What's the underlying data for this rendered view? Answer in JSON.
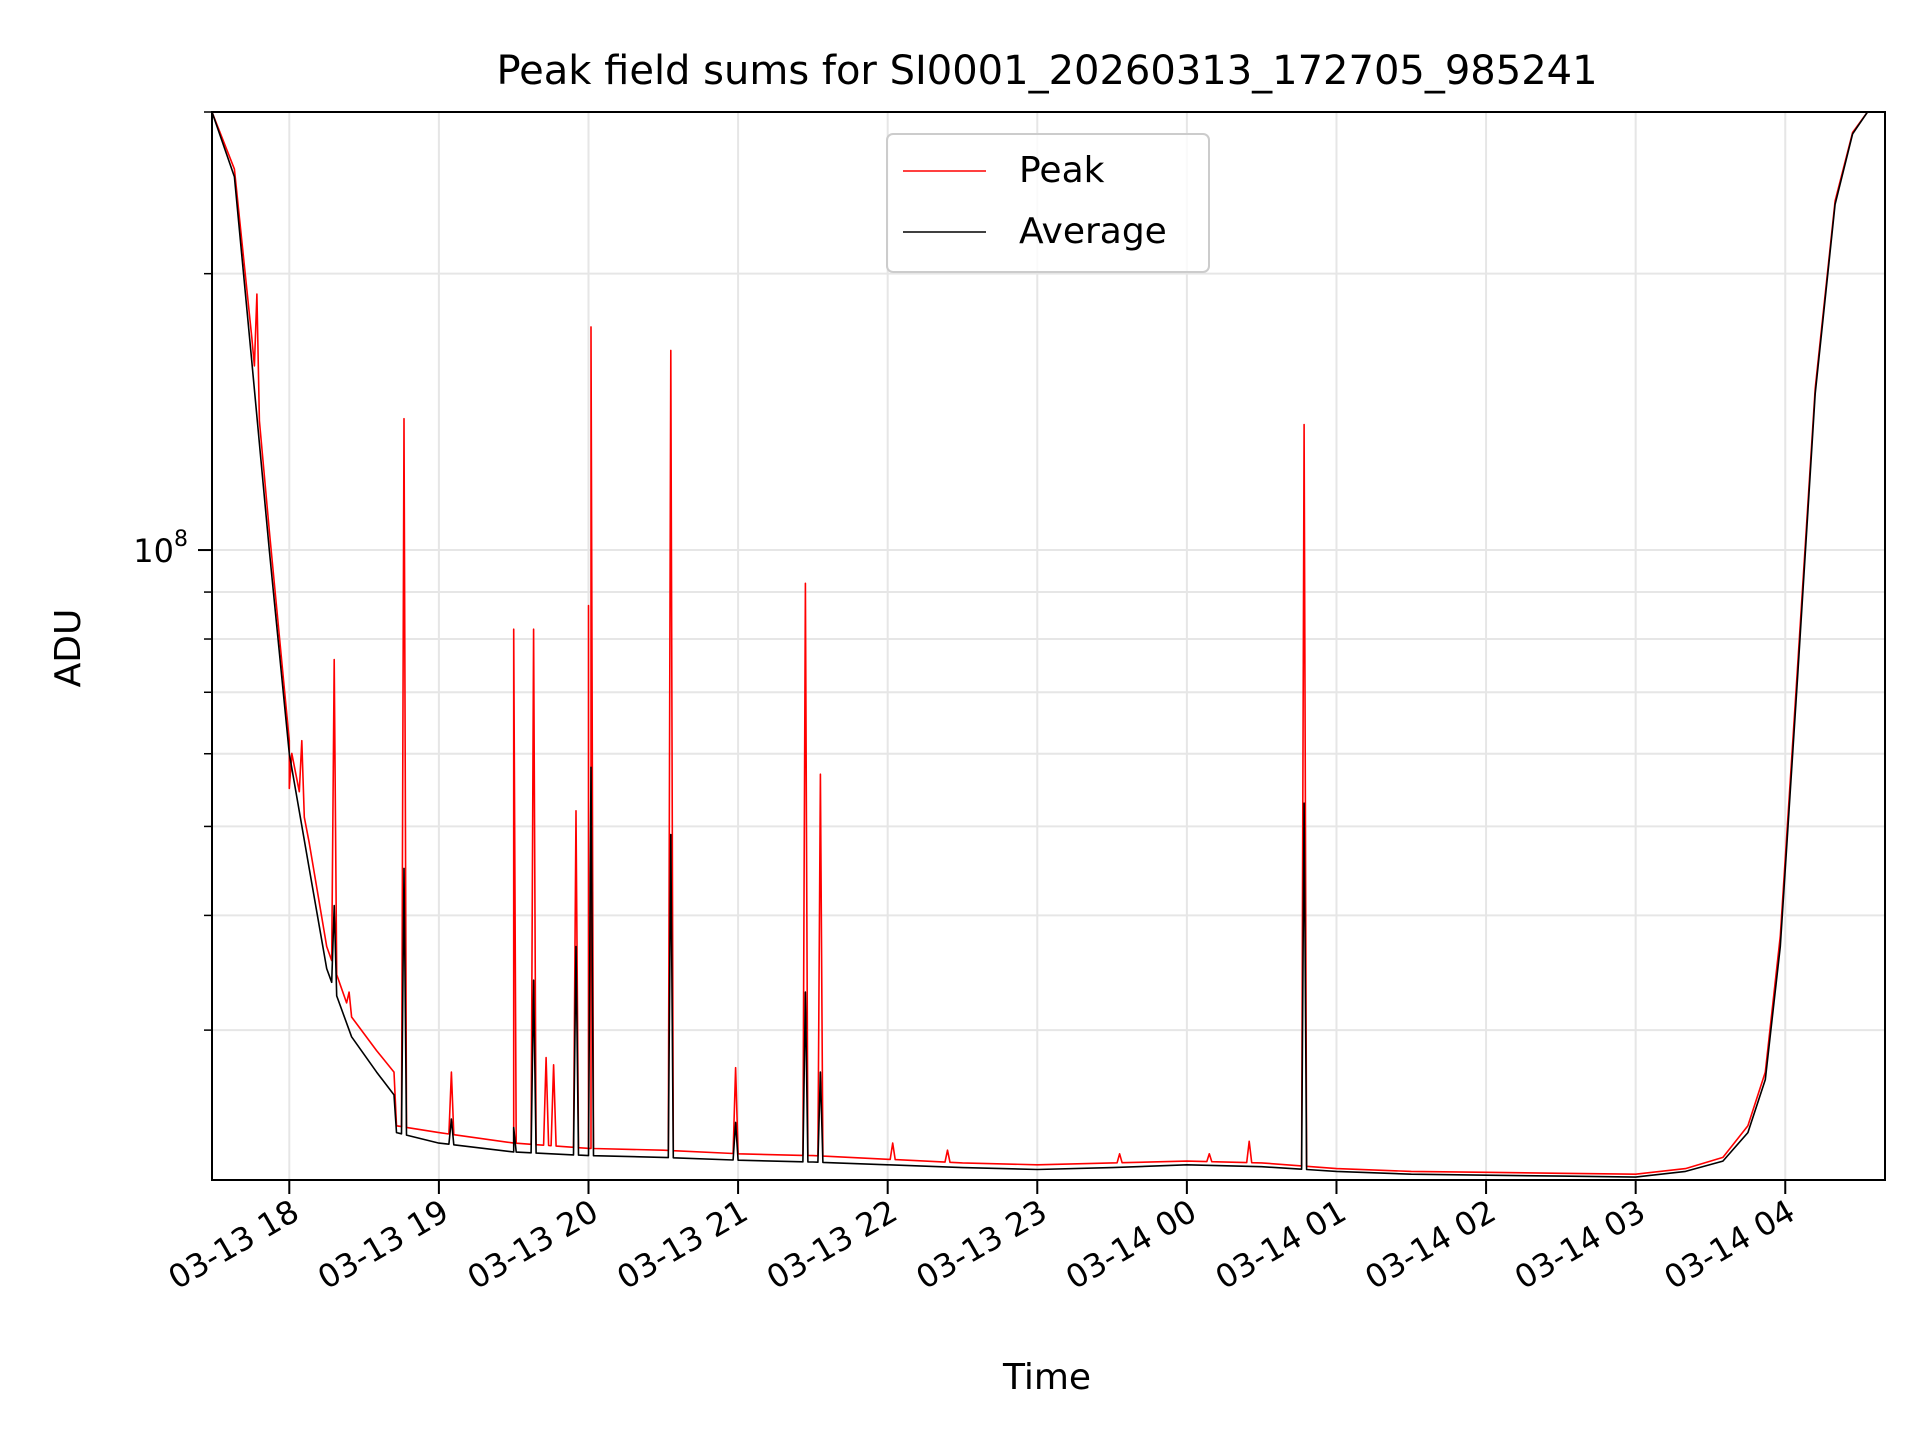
{
  "chart_data": {
    "type": "line",
    "title": "Peak field sums for SI0001_20260313_172705_985241",
    "xlabel": "Time",
    "ylabel": "ADU",
    "yscale": "log",
    "xlim": [
      "2026-03-13 17:29",
      "2026-03-14 04:40"
    ],
    "ylim": [
      20600000,
      300000000
    ],
    "x_tick_labels": [
      "03-13 18",
      "03-13 19",
      "03-13 20",
      "03-13 21",
      "03-13 22",
      "03-13 23",
      "03-14 00",
      "03-14 01",
      "03-14 02",
      "03-14 03",
      "03-14 04"
    ],
    "x_tick_times": [
      "2026-03-13 18:00",
      "2026-03-13 19:00",
      "2026-03-13 20:00",
      "2026-03-13 21:00",
      "2026-03-13 22:00",
      "2026-03-13 23:00",
      "2026-03-14 00:00",
      "2026-03-14 01:00",
      "2026-03-14 02:00",
      "2026-03-14 03:00",
      "2026-03-14 04:00"
    ],
    "y_major_tick": {
      "value": 100000000,
      "base": "10",
      "exponent": "8"
    },
    "grid": true,
    "legend_position": "upper center",
    "series": [
      {
        "name": "Peak",
        "color": "#ff0000",
        "baseline": [
          [
            "2026-03-13 17:29",
            300000000
          ],
          [
            "2026-03-13 17:38",
            260000000
          ],
          [
            "2026-03-13 17:45",
            170000000
          ],
          [
            "2026-03-13 17:52",
            105000000
          ],
          [
            "2026-03-13 18:00",
            62000000
          ],
          [
            "2026-03-13 18:08",
            48000000
          ],
          [
            "2026-03-13 18:15",
            37000000
          ],
          [
            "2026-03-13 18:25",
            31000000
          ],
          [
            "2026-03-13 18:35",
            28500000
          ],
          [
            "2026-03-13 18:42",
            27000000
          ],
          [
            "2026-03-13 18:43",
            23600000
          ],
          [
            "2026-03-13 19:00",
            23200000
          ],
          [
            "2026-03-13 19:30",
            22600000
          ],
          [
            "2026-03-13 20:00",
            22300000
          ],
          [
            "2026-03-13 20:30",
            22200000
          ],
          [
            "2026-03-13 21:00",
            22000000
          ],
          [
            "2026-03-13 21:30",
            21900000
          ],
          [
            "2026-03-13 22:00",
            21700000
          ],
          [
            "2026-03-13 22:30",
            21500000
          ],
          [
            "2026-03-13 23:00",
            21400000
          ],
          [
            "2026-03-13 23:30",
            21500000
          ],
          [
            "2026-03-14 00:00",
            21600000
          ],
          [
            "2026-03-14 00:30",
            21500000
          ],
          [
            "2026-03-14 01:00",
            21200000
          ],
          [
            "2026-03-14 01:30",
            21050000
          ],
          [
            "2026-03-14 02:00",
            21000000
          ],
          [
            "2026-03-14 02:30",
            20950000
          ],
          [
            "2026-03-14 03:00",
            20900000
          ],
          [
            "2026-03-14 03:20",
            21200000
          ],
          [
            "2026-03-14 03:35",
            21800000
          ],
          [
            "2026-03-14 03:45",
            23600000
          ],
          [
            "2026-03-14 03:52",
            27000000
          ],
          [
            "2026-03-14 03:58",
            38000000
          ],
          [
            "2026-03-14 04:05",
            75000000
          ],
          [
            "2026-03-14 04:12",
            150000000
          ],
          [
            "2026-03-14 04:20",
            240000000
          ],
          [
            "2026-03-14 04:27",
            285000000
          ],
          [
            "2026-03-14 04:33",
            300000000
          ],
          [
            "2026-03-14 04:40",
            300000000
          ]
        ],
        "spikes": [
          [
            "2026-03-13 17:47",
            190000000
          ],
          [
            "2026-03-13 18:00",
            55000000
          ],
          [
            "2026-03-13 18:05",
            62000000
          ],
          [
            "2026-03-13 18:18",
            76000000
          ],
          [
            "2026-03-13 18:24",
            33000000
          ],
          [
            "2026-03-13 18:46",
            139000000
          ],
          [
            "2026-03-13 19:05",
            27000000
          ],
          [
            "2026-03-13 19:30",
            82000000
          ],
          [
            "2026-03-13 19:38",
            82000000
          ],
          [
            "2026-03-13 19:43",
            28000000
          ],
          [
            "2026-03-13 19:46",
            27500000
          ],
          [
            "2026-03-13 19:55",
            52000000
          ],
          [
            "2026-03-13 20:00",
            87000000
          ],
          [
            "2026-03-13 20:01",
            175000000
          ],
          [
            "2026-03-13 20:33",
            165000000
          ],
          [
            "2026-03-13 20:59",
            27300000
          ],
          [
            "2026-03-13 21:27",
            92000000
          ],
          [
            "2026-03-13 21:33",
            57000000
          ],
          [
            "2026-03-13 22:02",
            22600000
          ],
          [
            "2026-03-13 22:24",
            22200000
          ],
          [
            "2026-03-13 23:33",
            22000000
          ],
          [
            "2026-03-14 00:09",
            22000000
          ],
          [
            "2026-03-14 00:25",
            22700000
          ],
          [
            "2026-03-14 00:47",
            137000000
          ]
        ]
      },
      {
        "name": "Average",
        "color": "#000000",
        "baseline": [
          [
            "2026-03-13 17:29",
            300000000
          ],
          [
            "2026-03-13 17:38",
            255000000
          ],
          [
            "2026-03-13 17:45",
            160000000
          ],
          [
            "2026-03-13 17:52",
            100000000
          ],
          [
            "2026-03-13 18:00",
            60000000
          ],
          [
            "2026-03-13 18:08",
            45000000
          ],
          [
            "2026-03-13 18:15",
            35000000
          ],
          [
            "2026-03-13 18:25",
            29500000
          ],
          [
            "2026-03-13 18:35",
            27000000
          ],
          [
            "2026-03-13 18:42",
            25500000
          ],
          [
            "2026-03-13 18:43",
            23200000
          ],
          [
            "2026-03-13 19:00",
            22600000
          ],
          [
            "2026-03-13 19:30",
            22100000
          ],
          [
            "2026-03-13 20:00",
            21900000
          ],
          [
            "2026-03-13 20:30",
            21800000
          ],
          [
            "2026-03-13 21:00",
            21650000
          ],
          [
            "2026-03-13 21:30",
            21550000
          ],
          [
            "2026-03-13 22:00",
            21400000
          ],
          [
            "2026-03-13 22:30",
            21250000
          ],
          [
            "2026-03-13 23:00",
            21150000
          ],
          [
            "2026-03-13 23:30",
            21250000
          ],
          [
            "2026-03-14 00:00",
            21400000
          ],
          [
            "2026-03-14 00:30",
            21300000
          ],
          [
            "2026-03-14 01:00",
            21050000
          ],
          [
            "2026-03-14 01:30",
            20900000
          ],
          [
            "2026-03-14 02:00",
            20850000
          ],
          [
            "2026-03-14 02:30",
            20800000
          ],
          [
            "2026-03-14 03:00",
            20750000
          ],
          [
            "2026-03-14 03:20",
            21050000
          ],
          [
            "2026-03-14 03:35",
            21600000
          ],
          [
            "2026-03-14 03:45",
            23200000
          ],
          [
            "2026-03-14 03:52",
            26500000
          ],
          [
            "2026-03-14 03:58",
            37000000
          ],
          [
            "2026-03-14 04:05",
            73000000
          ],
          [
            "2026-03-14 04:12",
            148000000
          ],
          [
            "2026-03-14 04:20",
            238000000
          ],
          [
            "2026-03-14 04:27",
            284000000
          ],
          [
            "2026-03-14 04:33",
            300000000
          ],
          [
            "2026-03-14 04:40",
            300000000
          ]
        ],
        "spikes": [
          [
            "2026-03-13 18:18",
            41000000
          ],
          [
            "2026-03-13 18:46",
            45000000
          ],
          [
            "2026-03-13 19:05",
            24000000
          ],
          [
            "2026-03-13 19:30",
            23500000
          ],
          [
            "2026-03-13 19:38",
            34000000
          ],
          [
            "2026-03-13 19:55",
            37000000
          ],
          [
            "2026-03-13 20:01",
            58000000
          ],
          [
            "2026-03-13 20:33",
            49000000
          ],
          [
            "2026-03-13 20:59",
            23800000
          ],
          [
            "2026-03-13 21:27",
            33000000
          ],
          [
            "2026-03-13 21:33",
            27000000
          ],
          [
            "2026-03-14 00:47",
            53000000
          ]
        ]
      }
    ]
  }
}
